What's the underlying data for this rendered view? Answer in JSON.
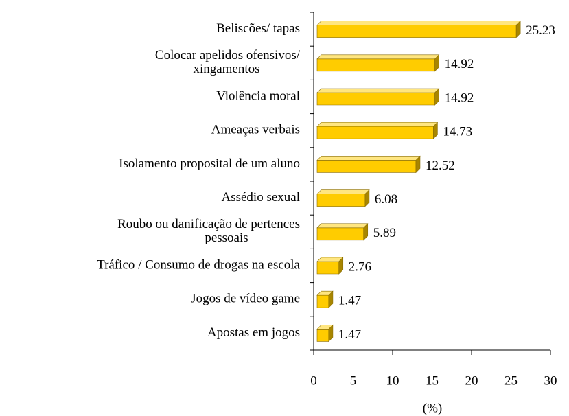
{
  "chart_data": {
    "type": "bar",
    "orientation": "horizontal",
    "x_label": "(%)",
    "categories": [
      [
        "Beliscões/ tapas"
      ],
      [
        "Colocar apelidos ofensivos/",
        "xingamentos"
      ],
      [
        "Violência moral"
      ],
      [
        "Ameaças verbais"
      ],
      [
        "Isolamento proposital de um aluno"
      ],
      [
        "Assédio sexual"
      ],
      [
        "Roubo ou danificação de pertences",
        "pessoais"
      ],
      [
        "Tráfico / Consumo de drogas na escola"
      ],
      [
        "Jogos de vídeo game"
      ],
      [
        "Apostas em jogos"
      ]
    ],
    "values": [
      25.23,
      14.92,
      14.92,
      14.73,
      12.52,
      6.08,
      5.89,
      2.76,
      1.47,
      1.47
    ],
    "color": "#ffcc00",
    "xlim": [
      0,
      30
    ],
    "xticks": [
      0,
      5,
      10,
      15,
      20,
      25,
      30
    ]
  }
}
